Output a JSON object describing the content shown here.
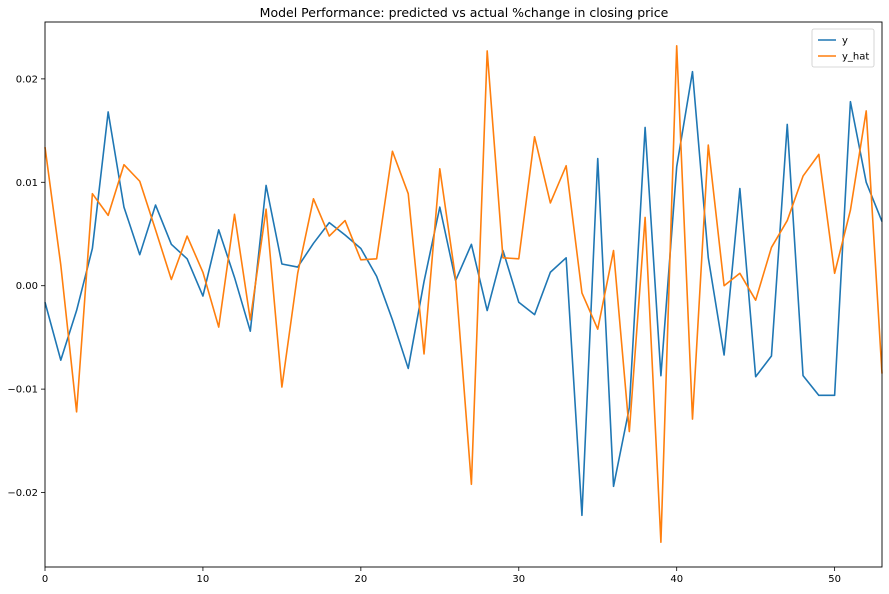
{
  "chart_data": {
    "type": "line",
    "title": "Model Performance: predicted vs actual %change in closing price",
    "xlabel": "",
    "ylabel": "",
    "xlim": [
      0,
      53
    ],
    "ylim": [
      -0.0272,
      0.0255
    ],
    "xticks": [
      0,
      10,
      20,
      30,
      40,
      50
    ],
    "xtick_labels": [
      "0",
      "10",
      "20",
      "30",
      "40",
      "50"
    ],
    "yticks": [
      -0.02,
      -0.01,
      0.0,
      0.01,
      0.02
    ],
    "ytick_labels": [
      "−0.02",
      "−0.01",
      "0.00",
      "0.01",
      "0.02"
    ],
    "grid": false,
    "legend_position": "top-right",
    "x": [
      0,
      1,
      2,
      3,
      4,
      5,
      6,
      7,
      8,
      9,
      10,
      11,
      12,
      13,
      14,
      15,
      16,
      17,
      18,
      19,
      20,
      21,
      22,
      23,
      24,
      25,
      26,
      27,
      28,
      29,
      30,
      31,
      32,
      33,
      34,
      35,
      36,
      37,
      38,
      39,
      40,
      41,
      42,
      43,
      44,
      45,
      46,
      47,
      48,
      49,
      50,
      51,
      52,
      53
    ],
    "series": [
      {
        "name": "y",
        "color": "#1f77b4",
        "values": [
          -0.0016,
          -0.0072,
          -0.0024,
          0.0036,
          0.0168,
          0.0076,
          0.003,
          0.0078,
          0.004,
          0.0026,
          -0.001,
          0.0054,
          0.0008,
          -0.0044,
          0.0097,
          0.0021,
          0.0018,
          0.0041,
          0.0061,
          0.0049,
          0.0036,
          0.0009,
          -0.0033,
          -0.008,
          0.0004,
          0.0076,
          0.0005,
          0.004,
          -0.0024,
          0.0034,
          -0.0016,
          -0.0028,
          0.0013,
          0.0027,
          -0.0222,
          0.0123,
          -0.0194,
          -0.0118,
          0.0153,
          -0.0087,
          0.0115,
          0.0207,
          0.0027,
          -0.0067,
          0.0094,
          -0.0088,
          -0.0068,
          0.0156,
          -0.0087,
          -0.0106,
          -0.0106,
          0.0178,
          0.01,
          0.0062
        ]
      },
      {
        "name": "y_hat",
        "color": "#ff7f0e",
        "values": [
          0.0134,
          0.002,
          -0.0122,
          0.0089,
          0.0068,
          0.0117,
          0.0101,
          0.0054,
          0.0006,
          0.0048,
          0.0013,
          -0.004,
          0.0069,
          -0.0033,
          0.0074,
          -0.0098,
          0.0012,
          0.0084,
          0.0048,
          0.0063,
          0.0025,
          0.0026,
          0.013,
          0.0089,
          -0.0066,
          0.0113,
          0.0007,
          -0.0192,
          0.0227,
          0.0027,
          0.0026,
          0.0144,
          0.008,
          0.0116,
          -0.0007,
          -0.0042,
          0.0034,
          -0.0141,
          0.0066,
          -0.0248,
          0.0232,
          -0.0129,
          0.0136,
          0.0,
          0.0012,
          -0.0014,
          0.0037,
          0.0063,
          0.0106,
          0.0127,
          0.0012,
          0.0073,
          0.0169,
          -0.0085
        ]
      }
    ]
  }
}
